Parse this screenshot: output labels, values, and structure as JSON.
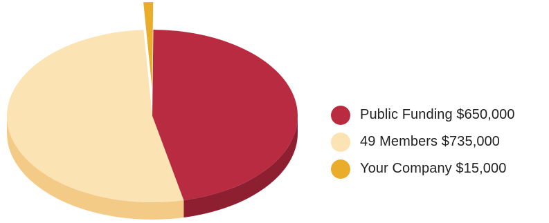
{
  "chart_data": {
    "type": "pie",
    "title": "",
    "style": "3d-tilted",
    "legend_position": "right",
    "series": [
      {
        "name": "Public Funding",
        "value": 650000,
        "label": "Public Funding $650,000",
        "color": "#b82b41",
        "side_color": "#8e1f31"
      },
      {
        "name": "49 Members",
        "value": 735000,
        "label": "49 Members $735,000",
        "color": "#fbe3b3",
        "side_color": "#f3cb86"
      },
      {
        "name": "Your Company",
        "value": 15000,
        "label": "Your Company $15,000",
        "color": "#e9ad2b",
        "side_color": "#c88f1a",
        "exploded": true
      }
    ]
  }
}
